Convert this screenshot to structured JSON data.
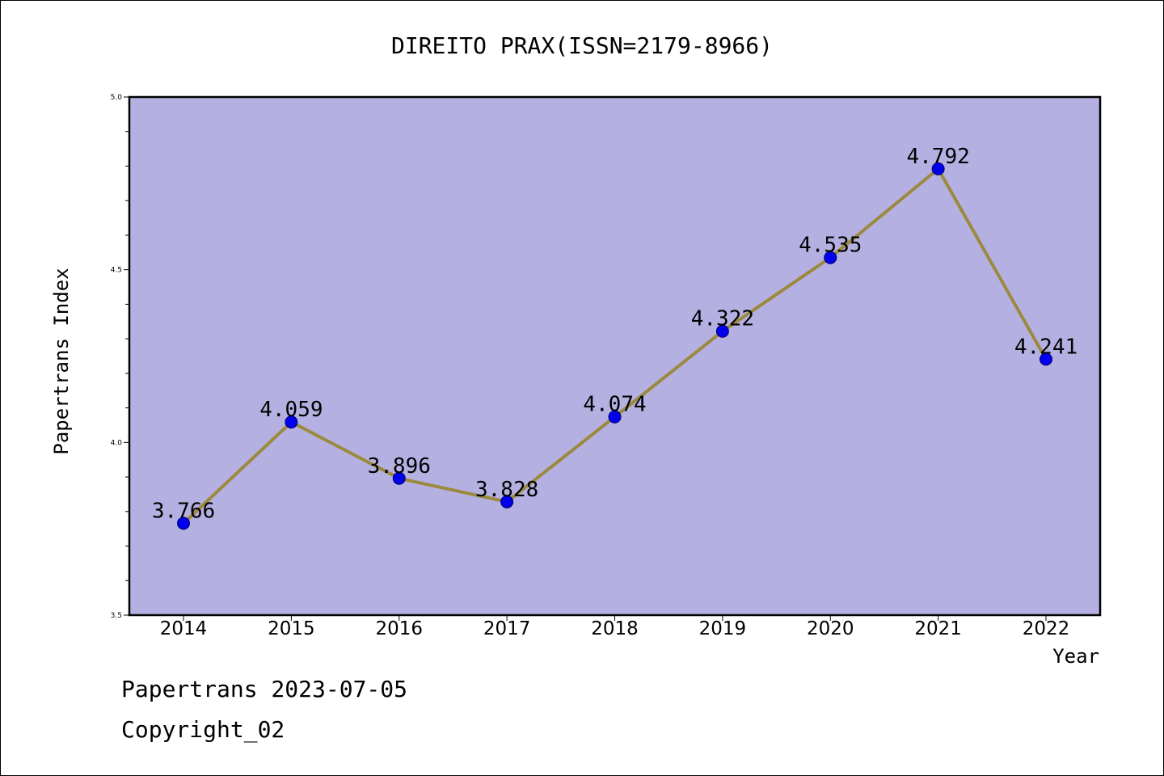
{
  "chart_data": {
    "type": "line",
    "title": "DIREITO PRAX(ISSN=2179-8966)",
    "xlabel": "Year",
    "ylabel": "Papertrans Index",
    "x": [
      "2014",
      "2015",
      "2016",
      "2017",
      "2018",
      "2019",
      "2020",
      "2021",
      "2022"
    ],
    "series": [
      {
        "values": [
          3.766,
          4.059,
          3.896,
          3.828,
          4.074,
          4.322,
          4.535,
          4.792,
          4.241
        ],
        "labels": [
          "3.766",
          "4.059",
          "3.896",
          "3.828",
          "4.074",
          "4.322",
          "4.535",
          "4.792",
          "4.241"
        ]
      }
    ],
    "ylim": [
      3.5,
      5.0
    ],
    "yticks": [
      "3.5",
      "4.0",
      "4.5",
      "5.0"
    ],
    "grid": false,
    "colors": {
      "plot_background": "#b5b0e2",
      "line": "#9b8a3e",
      "marker": "#0000ee",
      "marker_edge": "#00006a"
    }
  },
  "footer": {
    "line1": "Papertrans 2023-07-05",
    "line2": "Copyright_02"
  }
}
